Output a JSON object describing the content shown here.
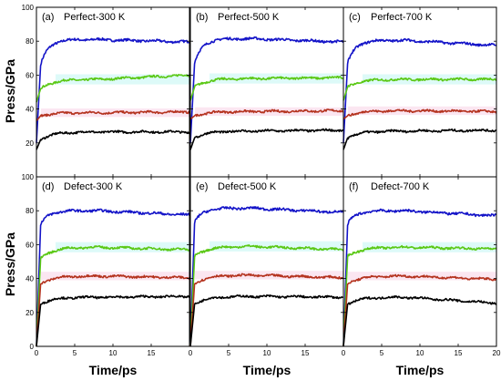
{
  "chart_data": {
    "type": "line",
    "grid": false,
    "ylabel": "Press/GPa",
    "xlabel": "Time/ps",
    "xlim": [
      0,
      20
    ],
    "ylim": [
      0,
      100
    ],
    "x_ticks": [
      0,
      5,
      10,
      15,
      20
    ],
    "x_tick_labels_shown": [
      "0",
      "5",
      "10",
      "15",
      "0",
      "5",
      "10",
      "15",
      "0",
      "5",
      "10",
      "15",
      "20"
    ],
    "y_ticks": [
      20,
      40,
      60,
      80,
      100
    ],
    "y_tick_labels_top_row": [
      "20",
      "40",
      "60",
      "80",
      "100"
    ],
    "y_tick_labels_bottom_row": [
      "0",
      "20",
      "40",
      "60",
      "80",
      "100"
    ],
    "series_colors": [
      "#1414c8",
      "#5ac814",
      "#b4321e",
      "#000000"
    ],
    "band_colors": [
      "#9ff0ea",
      "#f4b6d8"
    ],
    "panels": [
      {
        "label": "(a)",
        "title": "Perfect-300 K",
        "rise_time": 0.55,
        "series": [
          {
            "color": "#1414c8",
            "plateau": 81.0,
            "start": 20,
            "knee": 66,
            "end_drift": -1.5
          },
          {
            "color": "#5ac814",
            "plateau": 57.5,
            "start": 44,
            "knee": 52,
            "end_drift": 2.5
          },
          {
            "color": "#b4321e",
            "plateau": 37.8,
            "start": 33,
            "knee": 36,
            "end_drift": 0.5
          },
          {
            "color": "#000000",
            "plateau": 26.5,
            "start": 16,
            "knee": 22,
            "end_drift": 0.0
          }
        ]
      },
      {
        "label": "(b)",
        "title": "Perfect-500 K",
        "rise_time": 0.55,
        "series": [
          {
            "color": "#1414c8",
            "plateau": 81.5,
            "start": 20,
            "knee": 67,
            "end_drift": -2.0
          },
          {
            "color": "#5ac814",
            "plateau": 58.0,
            "start": 45,
            "knee": 53,
            "end_drift": 0.5
          },
          {
            "color": "#b4321e",
            "plateau": 38.5,
            "start": 34,
            "knee": 36,
            "end_drift": 0.5
          },
          {
            "color": "#000000",
            "plateau": 27.0,
            "start": 16,
            "knee": 23,
            "end_drift": 0.5
          }
        ]
      },
      {
        "label": "(c)",
        "title": "Perfect-700 K",
        "rise_time": 0.55,
        "series": [
          {
            "color": "#1414c8",
            "plateau": 80.5,
            "start": 20,
            "knee": 67,
            "end_drift": -3.0
          },
          {
            "color": "#5ac814",
            "plateau": 57.5,
            "start": 45,
            "knee": 53,
            "end_drift": 0.0
          },
          {
            "color": "#b4321e",
            "plateau": 39.0,
            "start": 34,
            "knee": 36,
            "end_drift": -0.5
          },
          {
            "color": "#000000",
            "plateau": 27.0,
            "start": 16,
            "knee": 23,
            "end_drift": 0.5
          }
        ]
      },
      {
        "label": "(d)",
        "title": "Defect-300 K",
        "rise_time": 0.55,
        "series": [
          {
            "color": "#1414c8",
            "plateau": 80.0,
            "start": 0,
            "knee": 72,
            "end_drift": -2.5
          },
          {
            "color": "#5ac814",
            "plateau": 58.5,
            "start": 0,
            "knee": 52,
            "end_drift": -1.5
          },
          {
            "color": "#b4321e",
            "plateau": 41.5,
            "start": 0,
            "knee": 37,
            "end_drift": -1.0
          },
          {
            "color": "#000000",
            "plateau": 29.0,
            "start": 0,
            "knee": 25,
            "end_drift": 0.5
          }
        ]
      },
      {
        "label": "(e)",
        "title": "Defect-500 K",
        "rise_time": 0.55,
        "series": [
          {
            "color": "#1414c8",
            "plateau": 81.5,
            "start": 0,
            "knee": 73,
            "end_drift": -2.5
          },
          {
            "color": "#5ac814",
            "plateau": 59.0,
            "start": 0,
            "knee": 53,
            "end_drift": -2.0
          },
          {
            "color": "#b4321e",
            "plateau": 42.0,
            "start": 0,
            "knee": 37,
            "end_drift": -1.5
          },
          {
            "color": "#000000",
            "plateau": 29.5,
            "start": 0,
            "knee": 25,
            "end_drift": -0.5
          }
        ]
      },
      {
        "label": "(f)",
        "title": "Defect-700 K",
        "rise_time": 0.55,
        "series": [
          {
            "color": "#1414c8",
            "plateau": 80.0,
            "start": 0,
            "knee": 72,
            "end_drift": -3.0
          },
          {
            "color": "#5ac814",
            "plateau": 58.5,
            "start": 0,
            "knee": 53,
            "end_drift": -1.0
          },
          {
            "color": "#b4321e",
            "plateau": 41.5,
            "start": 0,
            "knee": 37,
            "end_drift": -2.0
          },
          {
            "color": "#000000",
            "plateau": 29.0,
            "start": 0,
            "knee": 25,
            "end_drift": -3.5
          }
        ]
      }
    ]
  }
}
